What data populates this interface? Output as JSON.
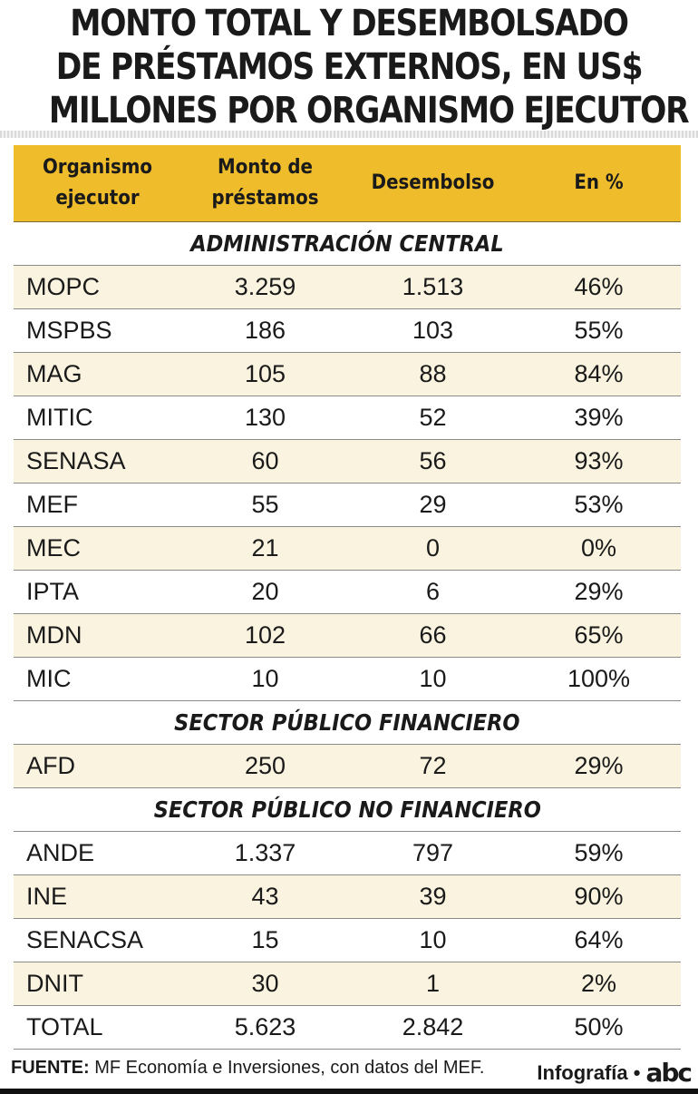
{
  "title": {
    "line1": "MONTO TOTAL Y DESEMBOLSADO",
    "line2": "DE PRÉSTAMOS EXTERNOS, EN US$",
    "line3": "MILLONES POR ORGANISMO EJECUTOR"
  },
  "colors": {
    "header_bg": "#efbd2c",
    "row_shade": "#faf3df"
  },
  "chart_data": {
    "type": "table",
    "columns": [
      "Organismo\nejecutor",
      "Monto de\npréstamos",
      "Desembolso",
      "En %"
    ],
    "sections": [
      {
        "title": "ADMINISTRACIÓN CENTRAL",
        "rows": [
          [
            "MOPC",
            "3.259",
            "1.513",
            "46%"
          ],
          [
            "MSPBS",
            "186",
            "103",
            "55%"
          ],
          [
            "MAG",
            "105",
            "88",
            "84%"
          ],
          [
            "MITIC",
            "130",
            "52",
            "39%"
          ],
          [
            "SENASA",
            "60",
            "56",
            "93%"
          ],
          [
            "MEF",
            "55",
            "29",
            "53%"
          ],
          [
            "MEC",
            "21",
            "0",
            "0%"
          ],
          [
            "IPTA",
            "20",
            "6",
            "29%"
          ],
          [
            "MDN",
            "102",
            "66",
            "65%"
          ],
          [
            "MIC",
            "10",
            "10",
            "100%"
          ]
        ]
      },
      {
        "title": "SECTOR PÚBLICO FINANCIERO",
        "rows": [
          [
            "AFD",
            "250",
            "72",
            "29%"
          ]
        ]
      },
      {
        "title": "SECTOR PÚBLICO NO FINANCIERO",
        "rows": [
          [
            "ANDE",
            "1.337",
            "797",
            "59%"
          ],
          [
            "INE",
            "43",
            "39",
            "90%"
          ],
          [
            "SENACSA",
            "15",
            "10",
            "64%"
          ],
          [
            "DNIT",
            "30",
            "1",
            "2%"
          ]
        ]
      }
    ],
    "total": [
      "TOTAL",
      "5.623",
      "2.842",
      "50%"
    ]
  },
  "footer": {
    "source_label": "FUENTE:",
    "source_text": " MF Economía e Inversiones, con datos del MEF.",
    "credit": "Infografía •",
    "logo": "abc"
  }
}
